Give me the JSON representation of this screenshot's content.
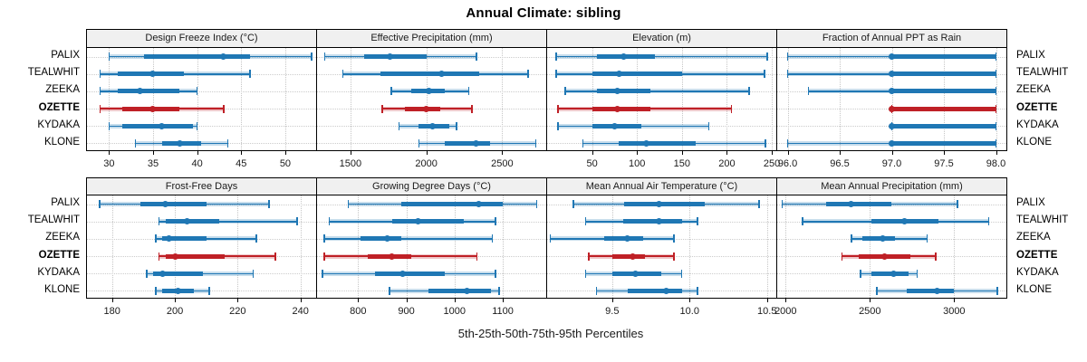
{
  "title": "Annual Climate: sibling",
  "caption": "5th-25th-50th-75th-95th Percentiles",
  "colors": {
    "normal": "#1f77b4",
    "highlight": "#bf2026"
  },
  "stations": [
    {
      "label": "PALIX",
      "highlight": false
    },
    {
      "label": "TEALWHIT",
      "highlight": false
    },
    {
      "label": "ZEEKA",
      "highlight": false
    },
    {
      "label": "OZETTE",
      "highlight": true
    },
    {
      "label": "KYDAKA",
      "highlight": false
    },
    {
      "label": "KLONE",
      "highlight": false
    }
  ],
  "chart_data": {
    "type": "percentile-range",
    "percentiles": [
      5,
      25,
      50,
      75,
      95
    ],
    "legend_position": "none",
    "grid": "dotted",
    "panels": [
      {
        "title": "Design Freeze Index (°C)",
        "xlim": [
          27.5,
          53.5
        ],
        "ticks": [
          30,
          35,
          40,
          45,
          50
        ],
        "tick_labels": [
          "30",
          "35",
          "40",
          "45",
          "50"
        ],
        "series": [
          {
            "station": "PALIX",
            "p": [
              30.0,
              34.0,
              43.0,
              46.0,
              53.0
            ]
          },
          {
            "station": "TEALWHIT",
            "p": [
              29.0,
              31.0,
              35.0,
              38.5,
              46.0
            ]
          },
          {
            "station": "ZEEKA",
            "p": [
              29.0,
              31.0,
              33.5,
              38.0,
              40.0
            ]
          },
          {
            "station": "OZETTE",
            "p": [
              29.0,
              31.5,
              35.0,
              38.0,
              43.0
            ]
          },
          {
            "station": "KYDAKA",
            "p": [
              30.0,
              31.5,
              36.0,
              39.5,
              40.0
            ]
          },
          {
            "station": "KLONE",
            "p": [
              33.0,
              36.0,
              38.0,
              40.5,
              43.5
            ]
          }
        ]
      },
      {
        "title": "Effective Precipitation (mm)",
        "xlim": [
          1280,
          2790
        ],
        "ticks": [
          1500,
          2000,
          2500
        ],
        "tick_labels": [
          "1500",
          "2000",
          "2500"
        ],
        "series": [
          {
            "station": "PALIX",
            "p": [
              1330,
              1590,
              1760,
              2000,
              2330
            ]
          },
          {
            "station": "TEALWHIT",
            "p": [
              1450,
              1700,
              2100,
              2350,
              2670
            ]
          },
          {
            "station": "ZEEKA",
            "p": [
              1770,
              1900,
              2020,
              2120,
              2280
            ]
          },
          {
            "station": "OZETTE",
            "p": [
              1710,
              1860,
              2000,
              2090,
              2300
            ]
          },
          {
            "station": "KYDAKA",
            "p": [
              1820,
              1950,
              2040,
              2150,
              2200
            ]
          },
          {
            "station": "KLONE",
            "p": [
              1950,
              2120,
              2330,
              2420,
              2720
            ]
          }
        ]
      },
      {
        "title": "Elevation (m)",
        "xlim": [
          0,
          255
        ],
        "ticks": [
          50,
          100,
          150,
          200,
          250
        ],
        "tick_labels": [
          "50",
          "100",
          "150",
          "200",
          "250"
        ],
        "series": [
          {
            "station": "PALIX",
            "p": [
              10,
              55,
              85,
              120,
              245
            ]
          },
          {
            "station": "TEALWHIT",
            "p": [
              10,
              50,
              80,
              150,
              242
            ]
          },
          {
            "station": "ZEEKA",
            "p": [
              20,
              55,
              78,
              115,
              225
            ]
          },
          {
            "station": "OZETTE",
            "p": [
              12,
              50,
              78,
              115,
              205
            ]
          },
          {
            "station": "KYDAKA",
            "p": [
              12,
              50,
              75,
              105,
              180
            ]
          },
          {
            "station": "KLONE",
            "p": [
              40,
              80,
              110,
              165,
              243
            ]
          }
        ]
      },
      {
        "title": "Fraction of Annual PPT as Rain",
        "xlim": [
          95.9,
          98.1
        ],
        "ticks": [
          96.0,
          96.5,
          97.0,
          97.5,
          98.0
        ],
        "tick_labels": [
          "96.0",
          "96.5",
          "97.0",
          "97.5",
          "98.0"
        ],
        "series": [
          {
            "station": "PALIX",
            "p": [
              96.0,
              97.0,
              97.0,
              98.0,
              98.0
            ]
          },
          {
            "station": "TEALWHIT",
            "p": [
              96.0,
              97.0,
              97.0,
              98.0,
              98.0
            ]
          },
          {
            "station": "ZEEKA",
            "p": [
              96.2,
              97.0,
              97.0,
              98.0,
              98.0
            ]
          },
          {
            "station": "OZETTE",
            "p": [
              97.0,
              97.0,
              97.0,
              98.0,
              98.0
            ]
          },
          {
            "station": "KYDAKA",
            "p": [
              97.0,
              97.0,
              97.0,
              98.0,
              98.0
            ]
          },
          {
            "station": "KLONE",
            "p": [
              96.0,
              97.0,
              97.0,
              98.0,
              98.0
            ]
          }
        ]
      },
      {
        "title": "Frost-Free Days",
        "xlim": [
          172,
          245
        ],
        "ticks": [
          180,
          200,
          220,
          240
        ],
        "tick_labels": [
          "180",
          "200",
          "220",
          "240"
        ],
        "series": [
          {
            "station": "PALIX",
            "p": [
              176,
              189,
              197,
              210,
              230
            ]
          },
          {
            "station": "TEALWHIT",
            "p": [
              195,
              197,
              204,
              214,
              239
            ]
          },
          {
            "station": "ZEEKA",
            "p": [
              194,
              196,
              198,
              210,
              226
            ]
          },
          {
            "station": "OZETTE",
            "p": [
              195,
              197,
              200,
              216,
              232
            ]
          },
          {
            "station": "KYDAKA",
            "p": [
              191,
              193,
              196,
              209,
              225
            ]
          },
          {
            "station": "KLONE",
            "p": [
              194,
              196,
              201,
              206,
              211
            ]
          }
        ]
      },
      {
        "title": "Growing Degree Days (°C)",
        "xlim": [
          715,
          1190
        ],
        "ticks": [
          800,
          900,
          1000,
          1100
        ],
        "tick_labels": [
          "800",
          "900",
          "1000",
          "1100"
        ],
        "series": [
          {
            "station": "PALIX",
            "p": [
              780,
              890,
              1050,
              1100,
              1170
            ]
          },
          {
            "station": "TEALWHIT",
            "p": [
              740,
              870,
              925,
              1020,
              1085
            ]
          },
          {
            "station": "ZEEKA",
            "p": [
              730,
              805,
              860,
              890,
              1078
            ]
          },
          {
            "station": "OZETTE",
            "p": [
              730,
              820,
              870,
              910,
              1046
            ]
          },
          {
            "station": "KYDAKA",
            "p": [
              726,
              836,
              893,
              980,
              1085
            ]
          },
          {
            "station": "KLONE",
            "p": [
              865,
              945,
              1025,
              1075,
              1092
            ]
          }
        ]
      },
      {
        "title": "Mean Annual Air Temperature (°C)",
        "xlim": [
          9.08,
          10.56
        ],
        "ticks": [
          9.5,
          10.0,
          10.5
        ],
        "tick_labels": [
          "9.5",
          "10.0",
          "10.5"
        ],
        "series": [
          {
            "station": "PALIX",
            "p": [
              9.25,
              9.58,
              9.8,
              10.1,
              10.45
            ]
          },
          {
            "station": "TEALWHIT",
            "p": [
              9.33,
              9.57,
              9.8,
              9.95,
              10.05
            ]
          },
          {
            "station": "ZEEKA",
            "p": [
              9.1,
              9.45,
              9.6,
              9.7,
              9.9
            ]
          },
          {
            "station": "OZETTE",
            "p": [
              9.35,
              9.5,
              9.63,
              9.71,
              9.9
            ]
          },
          {
            "station": "KYDAKA",
            "p": [
              9.33,
              9.5,
              9.65,
              9.82,
              9.95
            ]
          },
          {
            "station": "KLONE",
            "p": [
              9.4,
              9.6,
              9.85,
              9.95,
              10.05
            ]
          }
        ]
      },
      {
        "title": "Mean Annual Precipitation (mm)",
        "xlim": [
          1950,
          3310
        ],
        "ticks": [
          2000,
          2500,
          3000
        ],
        "tick_labels": [
          "2000",
          "2500",
          "3000"
        ],
        "series": [
          {
            "station": "PALIX",
            "p": [
              1980,
              2240,
              2390,
              2630,
              3020
            ]
          },
          {
            "station": "TEALWHIT",
            "p": [
              2100,
              2510,
              2705,
              2905,
              3205
            ]
          },
          {
            "station": "ZEEKA",
            "p": [
              2390,
              2455,
              2575,
              2650,
              2840
            ]
          },
          {
            "station": "OZETTE",
            "p": [
              2335,
              2435,
              2585,
              2740,
              2890
            ]
          },
          {
            "station": "KYDAKA",
            "p": [
              2445,
              2510,
              2640,
              2730,
              2780
            ]
          },
          {
            "station": "KLONE",
            "p": [
              2540,
              2720,
              2900,
              3000,
              3255
            ]
          }
        ]
      }
    ]
  }
}
